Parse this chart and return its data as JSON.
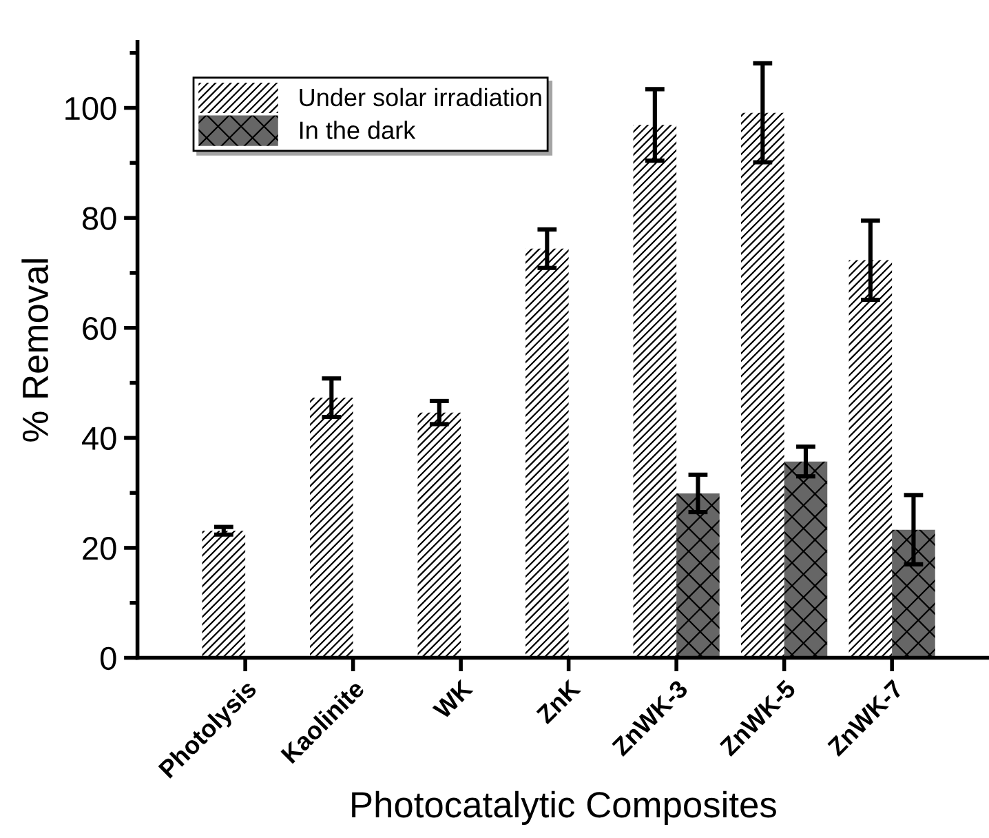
{
  "chart_data": {
    "type": "bar",
    "xlabel": "Photocatalytic Composites",
    "ylabel": "% Removal",
    "categories": [
      "Photolysis",
      "Kaolinite",
      "WK",
      "ZnK",
      "ZnWK-3",
      "ZnWK-5",
      "ZnWK-7"
    ],
    "series": [
      {
        "name": "Under solar irradiation",
        "color": "#ffffff",
        "values": [
          23.1,
          47.3,
          44.6,
          74.4,
          96.9,
          99.1,
          72.3
        ],
        "errors": [
          0.7,
          3.5,
          2.1,
          3.5,
          6.5,
          9.0,
          7.2
        ]
      },
      {
        "name": "In the dark",
        "color": "#666666",
        "values": [
          null,
          null,
          null,
          null,
          29.9,
          35.7,
          23.3
        ],
        "errors": [
          null,
          null,
          null,
          null,
          3.4,
          2.7,
          6.3
        ]
      }
    ],
    "ylim": [
      0,
      112
    ],
    "yticks": [
      0,
      20,
      40,
      60,
      80,
      100
    ],
    "grid": false,
    "legend": "top left"
  }
}
